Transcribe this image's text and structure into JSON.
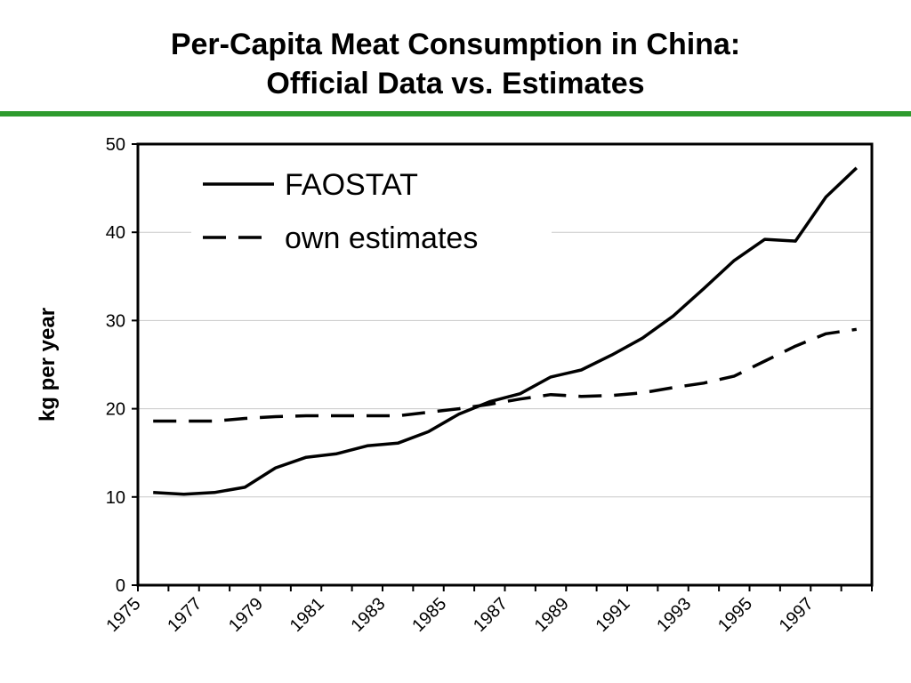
{
  "chart_data": {
    "type": "line",
    "title_line1": "Per-Capita Meat Consumption in China:",
    "title_line2": "Official Data vs. Estimates",
    "xlabel": "",
    "ylabel": "kg per year",
    "ylim": [
      0,
      50
    ],
    "yticks": [
      0,
      10,
      20,
      30,
      40,
      50
    ],
    "xlim": [
      1975,
      1999
    ],
    "xtick_labels": [
      "1975",
      "1977",
      "1979",
      "1981",
      "1983",
      "1985",
      "1987",
      "1989",
      "1991",
      "1993",
      "1995",
      "1997"
    ],
    "grid": true,
    "legend_position": "top-left",
    "x": [
      1975.5,
      1976.5,
      1977.5,
      1978.5,
      1979.5,
      1980.5,
      1981.5,
      1982.5,
      1983.5,
      1984.5,
      1985.5,
      1986.5,
      1987.5,
      1988.5,
      1989.5,
      1990.5,
      1991.5,
      1992.5,
      1993.5,
      1994.5,
      1995.5,
      1996.5,
      1997.5,
      1998.5
    ],
    "series": [
      {
        "name": "FAOSTAT",
        "style": "solid",
        "values": [
          10.5,
          10.3,
          10.5,
          11.1,
          13.3,
          14.5,
          14.9,
          15.8,
          16.1,
          17.4,
          19.4,
          20.8,
          21.7,
          23.6,
          24.4,
          26.1,
          28.0,
          30.5,
          33.6,
          36.8,
          39.2,
          39.0,
          44.0,
          47.3
        ]
      },
      {
        "name": "own estimates",
        "style": "dashed",
        "values": [
          18.6,
          18.6,
          18.6,
          18.9,
          19.1,
          19.2,
          19.2,
          19.2,
          19.2,
          19.6,
          20.0,
          20.5,
          21.1,
          21.6,
          21.4,
          21.5,
          21.8,
          22.4,
          22.9,
          23.7,
          25.4,
          27.1,
          28.5,
          29.0
        ]
      }
    ],
    "colors": {
      "line": "#000000",
      "rule": "#2e9b2e",
      "grid": "#c8c8c8"
    }
  }
}
